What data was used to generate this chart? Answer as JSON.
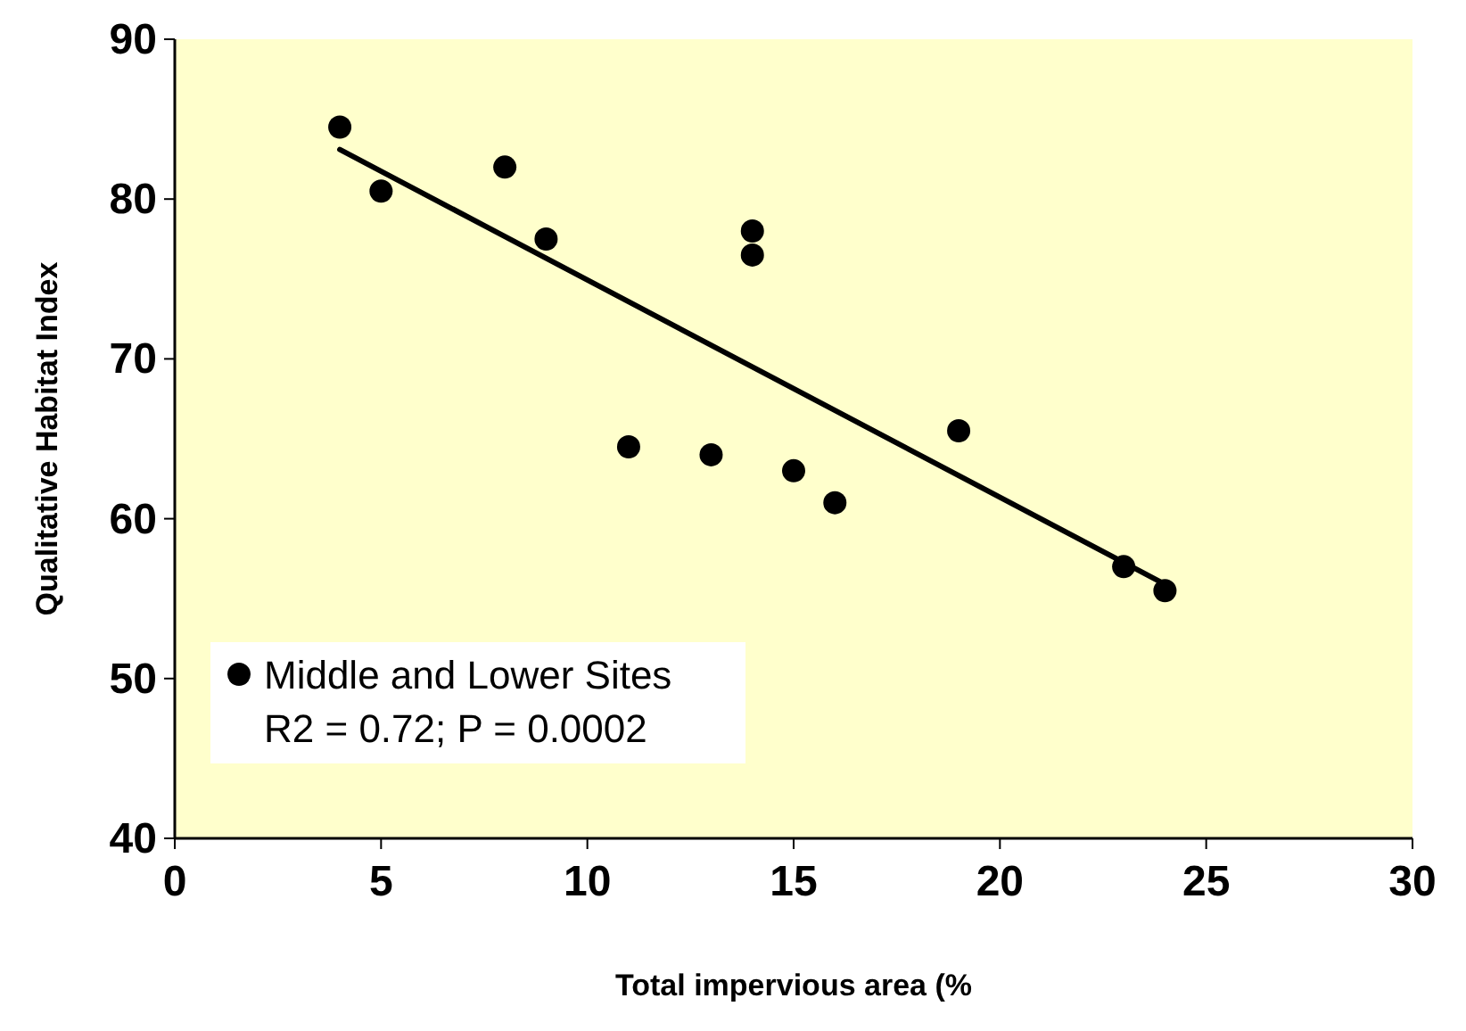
{
  "chart_data": {
    "type": "scatter",
    "xlabel": "Total impervious area (%",
    "ylabel": "Qualitative Habitat Index",
    "xlim": [
      0,
      30
    ],
    "xticks": [
      0,
      5,
      10,
      15,
      20,
      25,
      30
    ],
    "ylim": [
      40,
      90
    ],
    "yticks": [
      40,
      50,
      60,
      70,
      80,
      90
    ],
    "grid": false,
    "legend": "bottom left",
    "marker": "circle",
    "series": [
      {
        "name": "Middle and Lower Sites",
        "color": "#000000",
        "x": [
          4,
          5,
          8,
          9,
          11,
          13,
          14,
          14,
          15,
          16,
          19,
          23,
          24
        ],
        "values": [
          84.5,
          80.5,
          82,
          77.5,
          64.5,
          64,
          78,
          76.5,
          63,
          61,
          65.5,
          57,
          55.5
        ]
      },
      {
        "type": "line",
        "marker": "none",
        "color": "#000000",
        "x": [
          4,
          24
        ],
        "values": [
          83.1,
          55.9
        ]
      }
    ],
    "annotations": [
      "R2 = 0.72; P = 0.0002"
    ]
  }
}
